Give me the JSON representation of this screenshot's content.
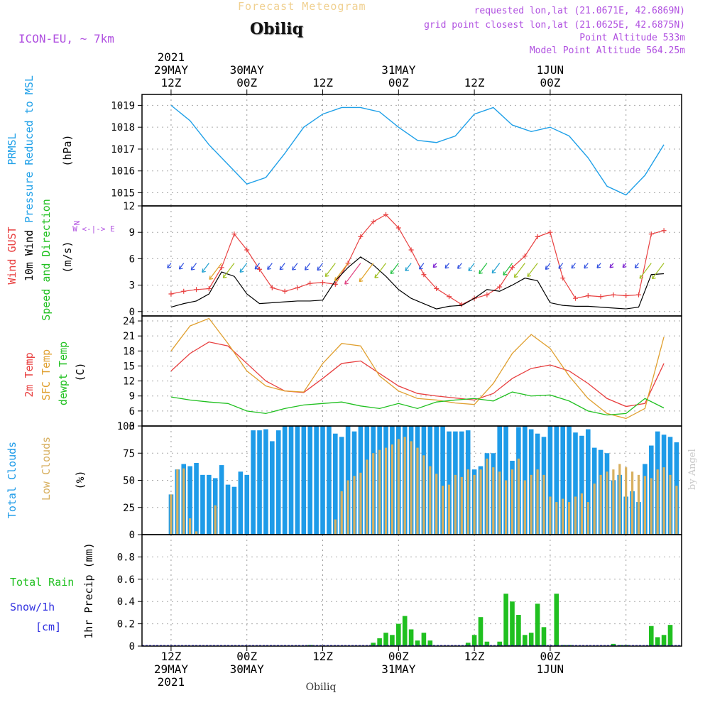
{
  "header": {
    "super_title": "Forecast Meteogram",
    "station": "Obiliq",
    "model": "ICON-EU, ~ 7km",
    "requested": "requested lon,lat (21.0671E, 42.6869N)",
    "grid_point": "grid point closest lon,lat (21.0625E, 42.6875N)",
    "altitude": "Point Altitude 533m",
    "model_altitude": "Model Point Altitude 564.25m",
    "credit": "by Angel",
    "footer_station": "Obiliq"
  },
  "colors": {
    "pressure": "#1fa0e8",
    "gust": "#e84040",
    "wind": "#000000",
    "temp2m": "#e84040",
    "sfc": "#e0a030",
    "dewpt": "#20c020",
    "total_clouds": "#1e9be8",
    "low_clouds": "#d8b060",
    "rain": "#20c020",
    "snow": "#3030e0",
    "meta": "#b050e0"
  },
  "chart_data": [
    {
      "type": "line",
      "panel": "pressure",
      "title": "PRMSL",
      "ylabel_lines": [
        "PRMSL",
        "Pressure Reduced to MSL",
        "(hPa)"
      ],
      "ylim": [
        1014.4,
        1019.5
      ],
      "yticks": [
        1015,
        1016,
        1017,
        1018,
        1019
      ],
      "x_hours": [
        0,
        3,
        6,
        9,
        12,
        15,
        18,
        21,
        24,
        27,
        30,
        33,
        36,
        39,
        42,
        45,
        48,
        51,
        54,
        57,
        60,
        63,
        66,
        69,
        72,
        75,
        78
      ],
      "values": [
        1019.0,
        1018.3,
        1017.2,
        1016.3,
        1015.4,
        1015.7,
        1016.8,
        1018.0,
        1018.6,
        1018.9,
        1018.9,
        1018.7,
        1018.0,
        1017.4,
        1017.3,
        1017.6,
        1018.6,
        1018.9,
        1018.1,
        1017.8,
        1018.0,
        1017.6,
        1016.6,
        1015.3,
        1014.9,
        1015.8,
        1017.2
      ]
    },
    {
      "type": "line",
      "panel": "wind",
      "ylabel_lines": [
        "Wind GUST",
        "10m Wind",
        "Speed and Direction",
        "(m/s)"
      ],
      "compass": "W <-|-> E",
      "ylim": [
        -0.5,
        12
      ],
      "yticks": [
        0,
        3,
        6,
        9,
        12
      ],
      "x_hours": [
        0,
        2,
        4,
        6,
        8,
        10,
        12,
        14,
        16,
        18,
        20,
        22,
        24,
        26,
        28,
        30,
        32,
        34,
        36,
        38,
        40,
        42,
        44,
        46,
        48,
        50,
        52,
        54,
        56,
        58,
        60,
        62,
        64,
        66,
        68,
        70,
        72,
        74,
        76,
        78
      ],
      "series": [
        {
          "name": "Wind GUST",
          "values": [
            2.0,
            2.3,
            2.5,
            2.6,
            5.0,
            8.8,
            7.0,
            4.8,
            2.7,
            2.3,
            2.7,
            3.2,
            3.3,
            3.1,
            5.5,
            8.5,
            10.2,
            11.0,
            9.5,
            7.0,
            4.2,
            2.6,
            1.7,
            0.8,
            1.5,
            1.9,
            2.8,
            5.0,
            6.3,
            8.5,
            9.0,
            3.8,
            1.5,
            1.8,
            1.7,
            1.9,
            1.8,
            1.9,
            8.8,
            9.2
          ]
        },
        {
          "name": "10m Wind",
          "values": [
            0.5,
            0.9,
            1.2,
            2.0,
            4.5,
            4.0,
            2.0,
            0.9,
            1.0,
            1.1,
            1.2,
            1.2,
            1.3,
            3.5,
            5.0,
            6.2,
            5.3,
            4.0,
            2.5,
            1.5,
            0.9,
            0.3,
            0.6,
            0.7,
            1.5,
            2.5,
            2.3,
            3.0,
            3.8,
            3.5,
            1.0,
            0.7,
            0.6,
            0.6,
            0.5,
            0.4,
            0.3,
            0.5,
            4.2,
            4.3
          ]
        }
      ]
    },
    {
      "type": "line",
      "panel": "temperature",
      "ylabel_lines": [
        "2m Temp",
        "SFC Temp",
        "dewpt Temp",
        "(C)"
      ],
      "ylim": [
        3,
        25
      ],
      "yticks": [
        3,
        6,
        9,
        12,
        15,
        18,
        21,
        24
      ],
      "x_hours": [
        0,
        3,
        6,
        9,
        12,
        15,
        18,
        21,
        24,
        27,
        30,
        33,
        36,
        39,
        42,
        45,
        48,
        51,
        54,
        57,
        60,
        63,
        66,
        69,
        72,
        75,
        78
      ],
      "series": [
        {
          "name": "2m Temp",
          "values": [
            14.0,
            17.5,
            19.8,
            19.0,
            15.5,
            12.0,
            10.0,
            9.7,
            12.5,
            15.5,
            16.0,
            13.5,
            11.0,
            9.5,
            9.0,
            8.6,
            8.2,
            9.5,
            12.5,
            14.5,
            15.2,
            14.0,
            11.5,
            8.5,
            6.9,
            7.5,
            15.5
          ]
        },
        {
          "name": "SFC Temp",
          "values": [
            18.0,
            23.0,
            24.5,
            19.5,
            14.0,
            11.0,
            10.0,
            9.8,
            15.5,
            19.5,
            19.0,
            13.0,
            10.0,
            8.5,
            8.2,
            7.6,
            7.3,
            11.5,
            17.5,
            21.3,
            18.5,
            13.0,
            8.5,
            5.5,
            4.5,
            6.5,
            20.8
          ]
        },
        {
          "name": "dewpt Temp",
          "values": [
            8.8,
            8.2,
            7.8,
            7.5,
            6.0,
            5.5,
            6.5,
            7.2,
            7.5,
            7.8,
            7.0,
            6.5,
            7.5,
            6.5,
            7.8,
            8.2,
            8.5,
            8.0,
            9.8,
            9.0,
            9.2,
            8.0,
            6.0,
            5.2,
            5.5,
            8.5,
            6.6
          ]
        }
      ]
    },
    {
      "type": "bar",
      "panel": "clouds",
      "ylabel_lines": [
        "Total Clouds",
        "Low Clouds",
        "(%)"
      ],
      "ylim": [
        0,
        100
      ],
      "yticks": [
        0,
        25,
        50,
        75,
        100
      ],
      "x_hours": [
        0,
        1,
        2,
        3,
        4,
        5,
        6,
        7,
        8,
        9,
        10,
        11,
        12,
        13,
        14,
        15,
        16,
        17,
        18,
        19,
        20,
        21,
        22,
        23,
        24,
        25,
        26,
        27,
        28,
        29,
        30,
        31,
        32,
        33,
        34,
        35,
        36,
        37,
        38,
        39,
        40,
        41,
        42,
        43,
        44,
        45,
        46,
        47,
        48,
        49,
        50,
        51,
        52,
        53,
        54,
        55,
        56,
        57,
        58,
        59,
        60,
        61,
        62,
        63,
        64,
        65,
        66,
        67,
        68,
        69,
        70,
        71,
        72,
        73,
        74,
        75,
        76,
        77,
        78,
        79,
        80
      ],
      "series": [
        {
          "name": "Total Clouds",
          "values": [
            37,
            60,
            65,
            63,
            66,
            55,
            55,
            52,
            64,
            46,
            44,
            58,
            55,
            96,
            96,
            97,
            86,
            96,
            100,
            100,
            100,
            100,
            100,
            100,
            100,
            100,
            93,
            90,
            100,
            95,
            100,
            100,
            100,
            100,
            100,
            100,
            100,
            100,
            100,
            100,
            100,
            100,
            100,
            100,
            95,
            95,
            95,
            96,
            60,
            63,
            75,
            75,
            100,
            100,
            68,
            99,
            100,
            97,
            93,
            90,
            100,
            100,
            100,
            100,
            94,
            91,
            97,
            80,
            78,
            75,
            50,
            55,
            35,
            40,
            30,
            65,
            82,
            95,
            92,
            90,
            85
          ]
        },
        {
          "name": "Low Clouds",
          "values": [
            37,
            60,
            61,
            15,
            3,
            0,
            0,
            27,
            0,
            0,
            0,
            0,
            0,
            0,
            0,
            0,
            0,
            0,
            0,
            0,
            0,
            0,
            0,
            0,
            0,
            0,
            14,
            40,
            50,
            54,
            57,
            69,
            75,
            78,
            80,
            83,
            88,
            90,
            86,
            80,
            73,
            63,
            56,
            45,
            46,
            55,
            53,
            60,
            55,
            60,
            70,
            62,
            58,
            50,
            60,
            70,
            50,
            55,
            60,
            55,
            35,
            30,
            33,
            30,
            35,
            38,
            30,
            47,
            55,
            58,
            60,
            65,
            62,
            58,
            55,
            54,
            52,
            60,
            62,
            55,
            45
          ]
        }
      ]
    },
    {
      "type": "bar",
      "panel": "precipitation",
      "ylabel_lines": [
        "Total Rain",
        "Snow/1h",
        "[cm]",
        "1hr Precip (mm)"
      ],
      "ylim": [
        0,
        1.0
      ],
      "yticks": [
        0,
        0.2,
        0.4,
        0.6,
        0.8
      ],
      "x_hours": [
        0,
        1,
        2,
        3,
        4,
        5,
        6,
        7,
        8,
        9,
        10,
        11,
        12,
        13,
        14,
        15,
        16,
        17,
        18,
        19,
        20,
        21,
        22,
        23,
        24,
        25,
        26,
        27,
        28,
        29,
        30,
        31,
        32,
        33,
        34,
        35,
        36,
        37,
        38,
        39,
        40,
        41,
        42,
        43,
        44,
        45,
        46,
        47,
        48,
        49,
        50,
        51,
        52,
        53,
        54,
        55,
        56,
        57,
        58,
        59,
        60,
        61,
        62,
        63,
        64,
        65,
        66,
        67,
        68,
        69,
        70,
        71,
        72,
        73,
        74,
        75,
        76,
        77,
        78,
        79,
        80
      ],
      "series": [
        {
          "name": "Total Rain",
          "values": [
            0,
            0,
            0,
            0,
            0,
            0,
            0,
            0,
            0,
            0,
            0,
            0,
            0,
            0,
            0,
            0,
            0,
            0,
            0,
            0,
            0,
            0,
            0.01,
            0,
            0,
            0,
            0,
            0,
            0,
            0,
            0,
            0,
            0.03,
            0.07,
            0.12,
            0.1,
            0.2,
            0.27,
            0.15,
            0.05,
            0.12,
            0.05,
            0,
            0,
            0,
            0,
            0,
            0.03,
            0.1,
            0.26,
            0.04,
            0,
            0.04,
            0.47,
            0.4,
            0.28,
            0.1,
            0.12,
            0.38,
            0.17,
            0,
            0.47,
            0.01,
            0.01,
            0,
            0,
            0,
            0,
            0,
            0,
            0.02,
            0.01,
            0.01,
            0,
            0,
            0,
            0.18,
            0.08,
            0.1,
            0.19,
            0
          ]
        },
        {
          "name": "Snow/1h",
          "values": [
            0,
            0,
            0,
            0,
            0,
            0,
            0,
            0,
            0,
            0,
            0,
            0,
            0,
            0,
            0,
            0,
            0,
            0,
            0,
            0,
            0,
            0,
            0,
            0,
            0,
            0,
            0,
            0,
            0,
            0,
            0,
            0,
            0,
            0,
            0,
            0,
            0,
            0,
            0,
            0,
            0,
            0,
            0,
            0,
            0,
            0,
            0,
            0,
            0,
            0,
            0,
            0,
            0,
            0,
            0,
            0,
            0,
            0,
            0,
            0,
            0,
            0,
            0,
            0,
            0,
            0,
            0,
            0,
            0,
            0,
            0,
            0,
            0,
            0,
            0,
            0,
            0,
            0,
            0,
            0,
            0
          ]
        }
      ]
    }
  ],
  "time_axis": {
    "top_labels": [
      {
        "hour": 0,
        "lines": [
          "2021",
          "29MAY",
          "12Z"
        ]
      },
      {
        "hour": 12,
        "lines": [
          "30MAY",
          "00Z"
        ]
      },
      {
        "hour": 24,
        "lines": [
          "12Z"
        ]
      },
      {
        "hour": 36,
        "lines": [
          "31MAY",
          "00Z"
        ]
      },
      {
        "hour": 48,
        "lines": [
          "12Z"
        ]
      },
      {
        "hour": 60,
        "lines": [
          "1JUN",
          "00Z"
        ]
      }
    ],
    "bottom_labels": [
      {
        "hour": 0,
        "lines": [
          "12Z",
          "29MAY",
          "2021"
        ]
      },
      {
        "hour": 12,
        "lines": [
          "00Z",
          "30MAY"
        ]
      },
      {
        "hour": 24,
        "lines": [
          "12Z"
        ]
      },
      {
        "hour": 36,
        "lines": [
          "00Z",
          "31MAY"
        ]
      },
      {
        "hour": 48,
        "lines": [
          "12Z"
        ]
      },
      {
        "hour": 60,
        "lines": [
          "00Z",
          "1JUN"
        ]
      }
    ]
  }
}
